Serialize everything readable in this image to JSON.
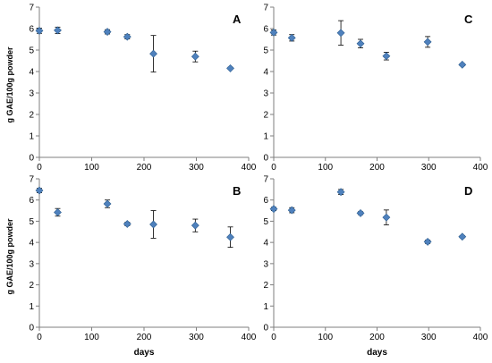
{
  "chart_data": [
    {
      "type": "scatter",
      "panel_label": "A",
      "xlabel": "",
      "ylabel": "g GAE/100g powder",
      "xlim": [
        0,
        400
      ],
      "ylim": [
        0,
        7
      ],
      "x_ticks": [
        "0",
        "100",
        "200",
        "300",
        "400"
      ],
      "y_ticks": [
        "0",
        "1",
        "2",
        "3",
        "4",
        "5",
        "6",
        "7"
      ],
      "points": [
        {
          "x": 0,
          "y": 5.9,
          "err": 0.12
        },
        {
          "x": 35,
          "y": 5.92,
          "err": 0.15
        },
        {
          "x": 130,
          "y": 5.85,
          "err": 0.1
        },
        {
          "x": 168,
          "y": 5.62,
          "err": 0.1
        },
        {
          "x": 218,
          "y": 4.83,
          "err": 0.85
        },
        {
          "x": 298,
          "y": 4.7,
          "err": 0.25
        },
        {
          "x": 365,
          "y": 4.15,
          "err": 0.05
        }
      ]
    },
    {
      "type": "scatter",
      "panel_label": "C",
      "xlabel": "",
      "ylabel": "",
      "xlim": [
        0,
        400
      ],
      "ylim": [
        0,
        7
      ],
      "x_ticks": [
        "0",
        "100",
        "200",
        "300",
        "400"
      ],
      "y_ticks": [
        "0",
        "1",
        "2",
        "3",
        "4",
        "5",
        "6",
        "7"
      ],
      "points": [
        {
          "x": 0,
          "y": 5.82,
          "err": 0.12
        },
        {
          "x": 35,
          "y": 5.57,
          "err": 0.15
        },
        {
          "x": 130,
          "y": 5.8,
          "err": 0.57
        },
        {
          "x": 168,
          "y": 5.3,
          "err": 0.2
        },
        {
          "x": 218,
          "y": 4.72,
          "err": 0.18
        },
        {
          "x": 298,
          "y": 5.38,
          "err": 0.25
        },
        {
          "x": 365,
          "y": 4.32,
          "err": 0.05
        }
      ]
    },
    {
      "type": "scatter",
      "panel_label": "B",
      "xlabel": "days",
      "ylabel": "g GAE/100g powder",
      "xlim": [
        0,
        400
      ],
      "ylim": [
        0,
        7
      ],
      "x_ticks": [
        "0",
        "100",
        "200",
        "300",
        "400"
      ],
      "y_ticks": [
        "0",
        "1",
        "2",
        "3",
        "4",
        "5",
        "6",
        "7"
      ],
      "points": [
        {
          "x": 0,
          "y": 6.45,
          "err": 0.1
        },
        {
          "x": 35,
          "y": 5.42,
          "err": 0.18
        },
        {
          "x": 130,
          "y": 5.82,
          "err": 0.18
        },
        {
          "x": 168,
          "y": 4.87,
          "err": 0.08
        },
        {
          "x": 218,
          "y": 4.85,
          "err": 0.65
        },
        {
          "x": 298,
          "y": 4.8,
          "err": 0.3
        },
        {
          "x": 365,
          "y": 4.25,
          "err": 0.48
        }
      ]
    },
    {
      "type": "scatter",
      "panel_label": "D",
      "xlabel": "days",
      "ylabel": "",
      "xlim": [
        0,
        400
      ],
      "ylim": [
        0,
        7
      ],
      "x_ticks": [
        "0",
        "100",
        "200",
        "300",
        "400"
      ],
      "y_ticks": [
        "0",
        "1",
        "2",
        "3",
        "4",
        "5",
        "6",
        "7"
      ],
      "points": [
        {
          "x": 0,
          "y": 5.58,
          "err": 0.08
        },
        {
          "x": 35,
          "y": 5.52,
          "err": 0.12
        },
        {
          "x": 130,
          "y": 6.38,
          "err": 0.12
        },
        {
          "x": 168,
          "y": 5.38,
          "err": 0.07
        },
        {
          "x": 218,
          "y": 5.18,
          "err": 0.35
        },
        {
          "x": 298,
          "y": 4.03,
          "err": 0.08
        },
        {
          "x": 365,
          "y": 4.27,
          "err": 0.05
        }
      ]
    }
  ],
  "colors": {
    "marker": "#4f81bd",
    "marker_edge": "#2c5d8f",
    "axis": "#7f7f7f",
    "text": "#000000"
  }
}
